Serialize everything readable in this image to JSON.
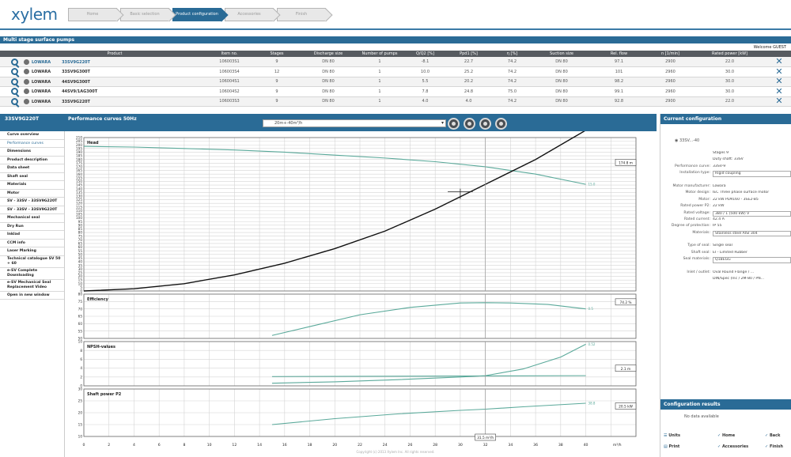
{
  "app": {
    "logo": "xylem",
    "steps": [
      "Home",
      "Basic selection",
      "Product configuration",
      "Accessories",
      "Finish"
    ],
    "active_step": 2,
    "section_title": "Multi stage surface pumps",
    "welcome": "Welcome GUEST"
  },
  "table": {
    "headers": [
      "",
      "",
      "Product",
      "Item no.",
      "Stages",
      "Discharge size",
      "Number of pumps",
      "Q/Q2 [%]",
      "Ppd1 [%]",
      "η [%]",
      "Suction size",
      "Rel. flow",
      "n [1/min]",
      "Rated power [kW]",
      ""
    ],
    "rows": [
      {
        "type": "LOWARA",
        "product": "33SV9G220T",
        "item": "106003S1",
        "stages": "9",
        "dis": "DN 80",
        "pumps": "1",
        "q": "-8.1",
        "p": "22.7",
        "eta": "74.2",
        "suc": "DN 80",
        "rel": "97.1",
        "n": "2900",
        "kw": "22.0",
        "sel": true
      },
      {
        "type": "LOWARA",
        "product": "33SV9G300T",
        "item": "106003S4",
        "stages": "12",
        "dis": "DN 80",
        "pumps": "1",
        "q": "10.0",
        "p": "25.2",
        "eta": "74.2",
        "suc": "DN 80",
        "rel": "101",
        "n": "2960",
        "kw": "30.0",
        "sel": false
      },
      {
        "type": "LOWARA",
        "product": "44SV9G300T",
        "item": "106004S1",
        "stages": "9",
        "dis": "DN 80",
        "pumps": "1",
        "q": "5.5",
        "p": "20.2",
        "eta": "74.2",
        "suc": "DN 80",
        "rel": "98.2",
        "n": "2960",
        "kw": "30.0",
        "sel": false
      },
      {
        "type": "LOWARA",
        "product": "44SV9/1AG300T",
        "item": "106004S2",
        "stages": "9",
        "dis": "DN 80",
        "pumps": "1",
        "q": "7.8",
        "p": "24.8",
        "eta": "75.0",
        "suc": "DN 80",
        "rel": "99.1",
        "n": "2960",
        "kw": "30.0",
        "sel": false
      },
      {
        "type": "LOWARA",
        "product": "33SV9G220T",
        "item": "106003S3",
        "stages": "9",
        "dis": "DN 80",
        "pumps": "1",
        "q": "4.0",
        "p": "4.0",
        "eta": "74.2",
        "suc": "DN 80",
        "rel": "92.8",
        "n": "2900",
        "kw": "22.0",
        "sel": false
      }
    ]
  },
  "perf": {
    "product": "33SV9G220T",
    "title": "Performance curves 50Hz",
    "select": "20m+-40m³/h"
  },
  "nav": [
    {
      "label": "Curve overview",
      "sel": false
    },
    {
      "label": "Performance curves",
      "sel": true
    },
    {
      "label": "Dimensions",
      "sel": false
    },
    {
      "label": "Product description",
      "sel": false
    },
    {
      "label": "Data sheet",
      "sel": false
    },
    {
      "label": "Shaft seal",
      "sel": false
    },
    {
      "label": "Materials",
      "sel": false
    },
    {
      "label": "Motor",
      "sel": false
    },
    {
      "label": "SV - 33SV - 33SV9G220T",
      "sel": false
    },
    {
      "label": "SV - 33SV - 33SV9G220T",
      "sel": false
    },
    {
      "label": "Mechanical seal",
      "sel": false
    },
    {
      "label": "Dry Run",
      "sel": false
    },
    {
      "label": "Inklad",
      "sel": false
    },
    {
      "label": "CCM info",
      "sel": false
    },
    {
      "label": "Laser Marking",
      "sel": false
    },
    {
      "label": "Technical catalogue SV 50 + 60",
      "sel": false,
      "two": true
    },
    {
      "label": "e-SV Complete Downloading",
      "sel": false,
      "two": true
    },
    {
      "label": "e-SV Mechanical Seal Replacement Video",
      "sel": false,
      "two": true
    },
    {
      "label": "Open in new window",
      "sel": false
    }
  ],
  "chart_data": {
    "type": "line",
    "x": [
      0,
      2,
      4,
      6,
      8,
      10,
      12,
      14,
      16,
      18,
      20,
      22,
      24,
      26,
      28,
      30,
      32,
      34,
      36,
      38,
      40
    ],
    "xlabel": "m³/h",
    "x_axis_label": "m³/h",
    "xlim": [
      0,
      44
    ],
    "duty_point_label": "31.5 m³/h",
    "panels": [
      {
        "label": "Head",
        "ylim": [
          0,
          210
        ],
        "yticks": [
          0,
          5,
          10,
          15,
          20,
          25,
          30,
          35,
          40,
          45,
          50,
          55,
          60,
          65,
          70,
          75,
          80,
          85,
          90,
          95,
          100,
          105,
          110,
          115,
          120,
          125,
          130,
          135,
          140,
          145,
          150,
          155,
          160,
          165,
          170,
          175,
          180,
          185,
          190,
          195,
          200,
          205,
          210
        ],
        "ylabel_text": "",
        "value_box": "174.8 m",
        "series": [
          {
            "name": "pump",
            "color": "#5aa99a",
            "x": [
              0,
              4,
              8,
              12,
              16,
              20,
              24,
              28,
              32,
              36,
              40
            ],
            "y": [
              198,
              197,
              195,
              193,
              190,
              186,
              182,
              177,
              170,
              160,
              146
            ]
          },
          {
            "name": "system",
            "color": "#111111",
            "x": [
              0,
              4,
              8,
              12,
              16,
              20,
              24,
              28,
              32,
              36,
              40
            ],
            "y": [
              0,
              3,
              10,
              22,
              38,
              58,
              82,
              112,
              146,
              180,
              220
            ]
          }
        ],
        "curve_end_label": "15.0"
      },
      {
        "label": "Efficiency",
        "ylim": [
          50,
          80
        ],
        "yticks": [
          50,
          55,
          60,
          65,
          70,
          75,
          80
        ],
        "ylabel_text": "",
        "value_box": "74.2 %",
        "series": [
          {
            "name": "eff",
            "color": "#5aa99a",
            "x": [
              15,
              18,
              22,
              26,
              30,
              32,
              34,
              37,
              40
            ],
            "y": [
              52,
              58,
              66,
              71,
              74,
              74.2,
              74,
              73,
              70
            ]
          }
        ],
        "curve_end_label": "0.5"
      },
      {
        "label": "NPSH-values",
        "ylim": [
          0,
          10
        ],
        "yticks": [
          0,
          2,
          4,
          6,
          8,
          10
        ],
        "ylabel_text": "",
        "value_box": "2.1 m",
        "series": [
          {
            "name": "npsh",
            "color": "#5aa99a",
            "x": [
              15,
              20,
              25,
              30,
              32,
              35,
              38,
              40
            ],
            "y": [
              0.6,
              0.9,
              1.4,
              2.0,
              2.3,
              3.8,
              6.5,
              9.4
            ]
          },
          {
            "name": "npsha",
            "color": "#5aa99a",
            "x": [
              15,
              40
            ],
            "y": [
              2.1,
              2.3
            ]
          }
        ],
        "curve_end_label": "0.52"
      },
      {
        "label": "Shaft power P2",
        "ylim": [
          10,
          30
        ],
        "yticks": [
          10,
          15,
          20,
          25,
          30
        ],
        "ylabel_text": "",
        "value_box": "20.5 kW",
        "series": [
          {
            "name": "p2",
            "color": "#5aa99a",
            "x": [
              15,
              20,
              25,
              30,
              32,
              35,
              40
            ],
            "y": [
              15,
              17.5,
              19.5,
              21,
              21.5,
              22.5,
              24
            ]
          }
        ],
        "curve_end_label": "38.8"
      }
    ]
  },
  "config": {
    "title": "Current configuration",
    "subtitle": "33SV...-40",
    "rows": [
      {
        "k": "",
        "v": "Stages 9",
        "box": false
      },
      {
        "k": "",
        "v": "Duty shaft: 33SV",
        "box": false
      },
      {
        "k": "Performance curve:",
        "v": "33SV-9",
        "box": false
      },
      {
        "k": "Installation type:",
        "v": "Rigid coupling",
        "box": true
      },
      {
        "k": "",
        "v": "",
        "box": false
      },
      {
        "k": "Motor manufacturer:",
        "v": "Lowara",
        "box": false
      },
      {
        "k": "Motor design:",
        "v": "IEC Three phase surface motor",
        "box": false
      },
      {
        "k": "Motor:",
        "v": "22 kW PLM160 - 3SE2-B5",
        "box": false
      },
      {
        "k": "Rated power P2:",
        "v": "22 kW",
        "box": false
      },
      {
        "k": "Rated voltage:",
        "v": "380 / 1 (500 kW) V",
        "box": true
      },
      {
        "k": "Rated current:",
        "v": "42.4 A",
        "box": false
      },
      {
        "k": "Degree of protection:",
        "v": "IP 55",
        "box": false
      },
      {
        "k": "Materials:",
        "v": "Stainless steel AISI 304",
        "box": true
      },
      {
        "k": "",
        "v": "",
        "box": false
      },
      {
        "k": "Type of seal:",
        "v": "Single seal",
        "box": false
      },
      {
        "k": "Shaft seal:",
        "v": "EI - Limited Rubber",
        "box": false
      },
      {
        "k": "Seal materials:",
        "v": "Q1BEGG",
        "box": true
      },
      {
        "k": "",
        "v": "",
        "box": false
      },
      {
        "k": "Inlet / outlet:",
        "v": "Oval Round Flange / ...",
        "box": false
      },
      {
        "k": "",
        "v": "DIN/Spec (Inc / 2M-80 / PN...",
        "box": false
      }
    ],
    "results_title": "Configuration results",
    "no_data": "No data available",
    "actions": {
      "units": "Units",
      "home": "Home",
      "back": "Back",
      "print": "Print",
      "accessories": "Accessories",
      "finish": "Finish"
    }
  },
  "footer": "Copyright (c) 2013 Xylem Inc. All rights reserved."
}
